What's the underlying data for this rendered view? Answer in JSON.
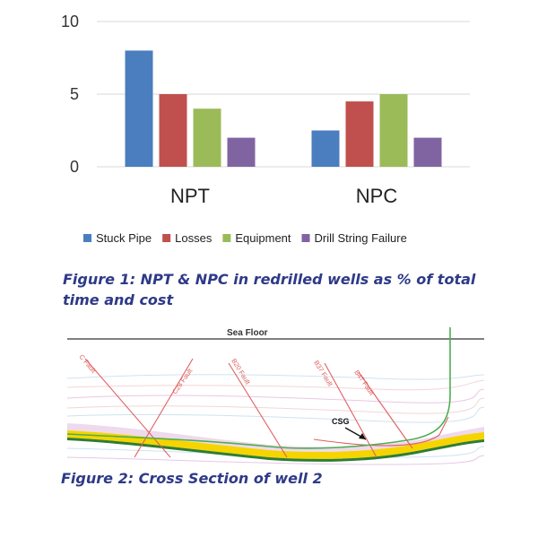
{
  "chart_data": {
    "type": "bar",
    "categories": [
      "NPT",
      "NPC"
    ],
    "series": [
      {
        "name": "Stuck Pipe",
        "color": "#4a7ebf",
        "values": [
          8,
          2.5
        ]
      },
      {
        "name": "Losses",
        "color": "#c0504d",
        "values": [
          5,
          4.5
        ]
      },
      {
        "name": "Equipment",
        "color": "#9bbb59",
        "values": [
          4,
          5
        ]
      },
      {
        "name": "Drill String Failure",
        "color": "#8064a2",
        "values": [
          2,
          2
        ]
      }
    ],
    "ylim": [
      0,
      10
    ],
    "yticks": [
      0,
      5,
      10
    ],
    "grid": true,
    "legend": "bottom"
  },
  "figure1_caption": "Figure 1: NPT & NPC in redrilled wells as % of total time and cost",
  "cross_section": {
    "sea_floor_label": "Sea Floor",
    "faults": [
      "C Fault",
      "C28 Fault",
      "B20 Fault",
      "B37 Fault",
      "B47 Fault"
    ],
    "csg_label": "CSG",
    "colors": {
      "fault": "#e06060",
      "reservoir": "#f5d400",
      "well": "#4caf50"
    }
  },
  "figure2_caption": "Figure 2:  Cross Section of well 2"
}
